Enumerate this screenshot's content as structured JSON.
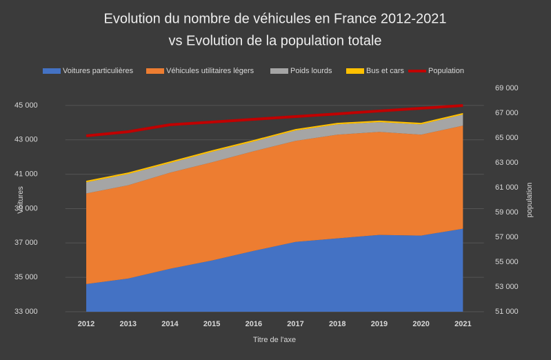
{
  "chart_data": {
    "type": "stacked_area_line",
    "title": "Evolution du nombre de véhicules en France 2012-2021",
    "subtitle": "vs Evolution de la population totale",
    "xlabel": "Titre de l'axe",
    "ylabel": "Voitures",
    "y2label": "population",
    "categories": [
      "2012",
      "2013",
      "2014",
      "2015",
      "2016",
      "2017",
      "2018",
      "2019",
      "2020",
      "2021"
    ],
    "series": [
      {
        "name": "Voitures particulières",
        "color": "#4472c4",
        "values": [
          34610,
          34930,
          35500,
          35980,
          36540,
          37060,
          37270,
          37470,
          37430,
          37830
        ]
      },
      {
        "name": "Véhicules utilitaires légers",
        "color": "#ed7d31",
        "values": [
          5270,
          5430,
          5590,
          5710,
          5800,
          5880,
          6030,
          5990,
          5870,
          6000
        ]
      },
      {
        "name": "Poids lourds",
        "color": "#a5a5a5",
        "values": [
          650,
          650,
          560,
          610,
          560,
          600,
          600,
          570,
          600,
          640
        ]
      },
      {
        "name": "Bus et cars",
        "color": "#ffc000",
        "values": [
          90,
          90,
          90,
          90,
          90,
          90,
          90,
          90,
          90,
          90
        ]
      },
      {
        "name": "Population",
        "color": "#c00000",
        "axis": "y2",
        "values": [
          65170,
          65500,
          66060,
          66280,
          66500,
          66720,
          66940,
          67170,
          67390,
          67610
        ]
      }
    ],
    "ylim": [
      33000,
      46000
    ],
    "yticks": [
      {
        "value": 33000,
        "label": "33 000"
      },
      {
        "value": 35000,
        "label": "35 000"
      },
      {
        "value": 37000,
        "label": "37 000"
      },
      {
        "value": 39000,
        "label": "39 000"
      },
      {
        "value": 41000,
        "label": "41 000"
      },
      {
        "value": 43000,
        "label": "43 000"
      },
      {
        "value": 45000,
        "label": "45 000"
      }
    ],
    "y2lim": [
      51000,
      69000
    ],
    "y2ticks": [
      {
        "value": 51000,
        "label": "51 000"
      },
      {
        "value": 53000,
        "label": "53 000"
      },
      {
        "value": 55000,
        "label": "55 000"
      },
      {
        "value": 57000,
        "label": "57 000"
      },
      {
        "value": 59000,
        "label": "59 000"
      },
      {
        "value": 61000,
        "label": "61 000"
      },
      {
        "value": 63000,
        "label": "63 000"
      },
      {
        "value": 65000,
        "label": "65 000"
      },
      {
        "value": 67000,
        "label": "67 000"
      },
      {
        "value": 69000,
        "label": "69 000"
      }
    ],
    "grid": true,
    "legend": "top"
  }
}
